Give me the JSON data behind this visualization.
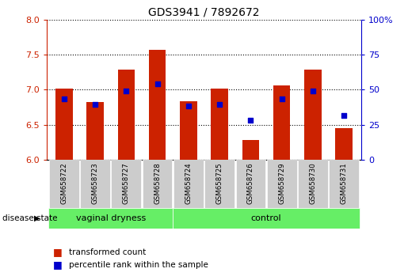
{
  "title": "GDS3941 / 7892672",
  "samples": [
    "GSM658722",
    "GSM658723",
    "GSM658727",
    "GSM658728",
    "GSM658724",
    "GSM658725",
    "GSM658726",
    "GSM658729",
    "GSM658730",
    "GSM658731"
  ],
  "bar_values": [
    7.02,
    6.82,
    7.28,
    7.57,
    6.83,
    7.02,
    6.28,
    7.06,
    7.28,
    6.45
  ],
  "blue_dot_values": [
    6.87,
    6.79,
    6.98,
    7.08,
    6.77,
    6.79,
    6.56,
    6.87,
    6.98,
    6.63
  ],
  "ylim_left": [
    6.0,
    8.0
  ],
  "ylim_right": [
    0,
    100
  ],
  "yticks_left": [
    6.0,
    6.5,
    7.0,
    7.5,
    8.0
  ],
  "yticks_right": [
    0,
    25,
    50,
    75,
    100
  ],
  "bar_color": "#cc2200",
  "dot_color": "#0000cc",
  "group1_label": "vaginal dryness",
  "group2_label": "control",
  "group1_count": 4,
  "group2_count": 6,
  "group_bg_color": "#66ee66",
  "tick_bg_color": "#cccccc",
  "disease_state_label": "disease state",
  "legend_bar_label": "transformed count",
  "legend_dot_label": "percentile rank within the sample",
  "bar_width": 0.55,
  "fig_width": 5.15,
  "fig_height": 3.54,
  "dpi": 100
}
